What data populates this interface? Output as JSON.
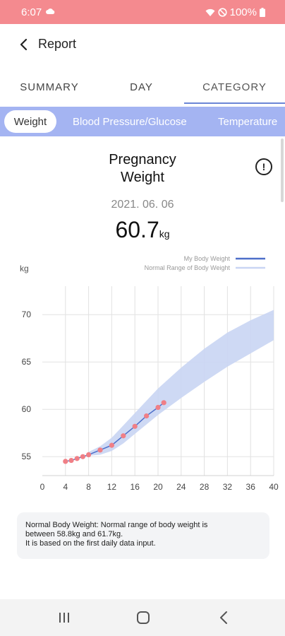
{
  "status_bar": {
    "time": "6:07",
    "battery": "100%"
  },
  "header": {
    "title": "Report"
  },
  "tabs": [
    {
      "label": "SUMMARY"
    },
    {
      "label": "DAY"
    },
    {
      "label": "CATEGORY"
    }
  ],
  "categories": [
    {
      "label": "Weight"
    },
    {
      "label": "Blood Pressure/Glucose"
    },
    {
      "label": "Temperature"
    }
  ],
  "summary": {
    "title_line1": "Pregnancy",
    "title_line2": "Weight",
    "info_glyph": "!",
    "date": "2021. 06. 06",
    "value": "60.7",
    "unit": "kg"
  },
  "chart_data": {
    "type": "line",
    "ylabel": "kg",
    "xlim": [
      0,
      40
    ],
    "ylim": [
      53,
      73
    ],
    "x_ticks": [
      0,
      4,
      8,
      12,
      16,
      20,
      24,
      28,
      32,
      36,
      40
    ],
    "y_ticks": [
      55,
      60,
      65,
      70
    ],
    "grid": true,
    "legend_position": "top-right",
    "series": [
      {
        "name": "My Body Weight",
        "color": "#4d6fc9",
        "x": [
          4,
          5,
          6,
          7,
          8,
          10,
          12,
          14,
          16,
          18,
          20,
          21
        ],
        "y": [
          54.5,
          54.6,
          54.8,
          55.0,
          55.2,
          55.7,
          56.2,
          57.2,
          58.2,
          59.3,
          60.2,
          60.7
        ]
      },
      {
        "name": "Normal Range of Body Weight",
        "color": "#c9d5f3",
        "band": true,
        "x": [
          8,
          10,
          12,
          14,
          16,
          20,
          24,
          28,
          32,
          36,
          40
        ],
        "lower": [
          55.1,
          55.2,
          55.6,
          56.4,
          57.4,
          59.4,
          61.2,
          62.9,
          64.5,
          65.9,
          67.3
        ],
        "upper": [
          55.5,
          56.1,
          57.0,
          58.3,
          59.6,
          62.2,
          64.4,
          66.4,
          68.1,
          69.4,
          70.5
        ]
      }
    ]
  },
  "note": {
    "line1": "Normal Body Weight: Normal range of body weight is",
    "line2": "between 58.8kg and 61.7kg.",
    "line3": "It is based on the first daily data input."
  },
  "colors": {
    "accent": "#6b86d6",
    "status_bar": "#f48a8f",
    "chip_strip": "#a4b4f2",
    "point": "#f07f86"
  }
}
